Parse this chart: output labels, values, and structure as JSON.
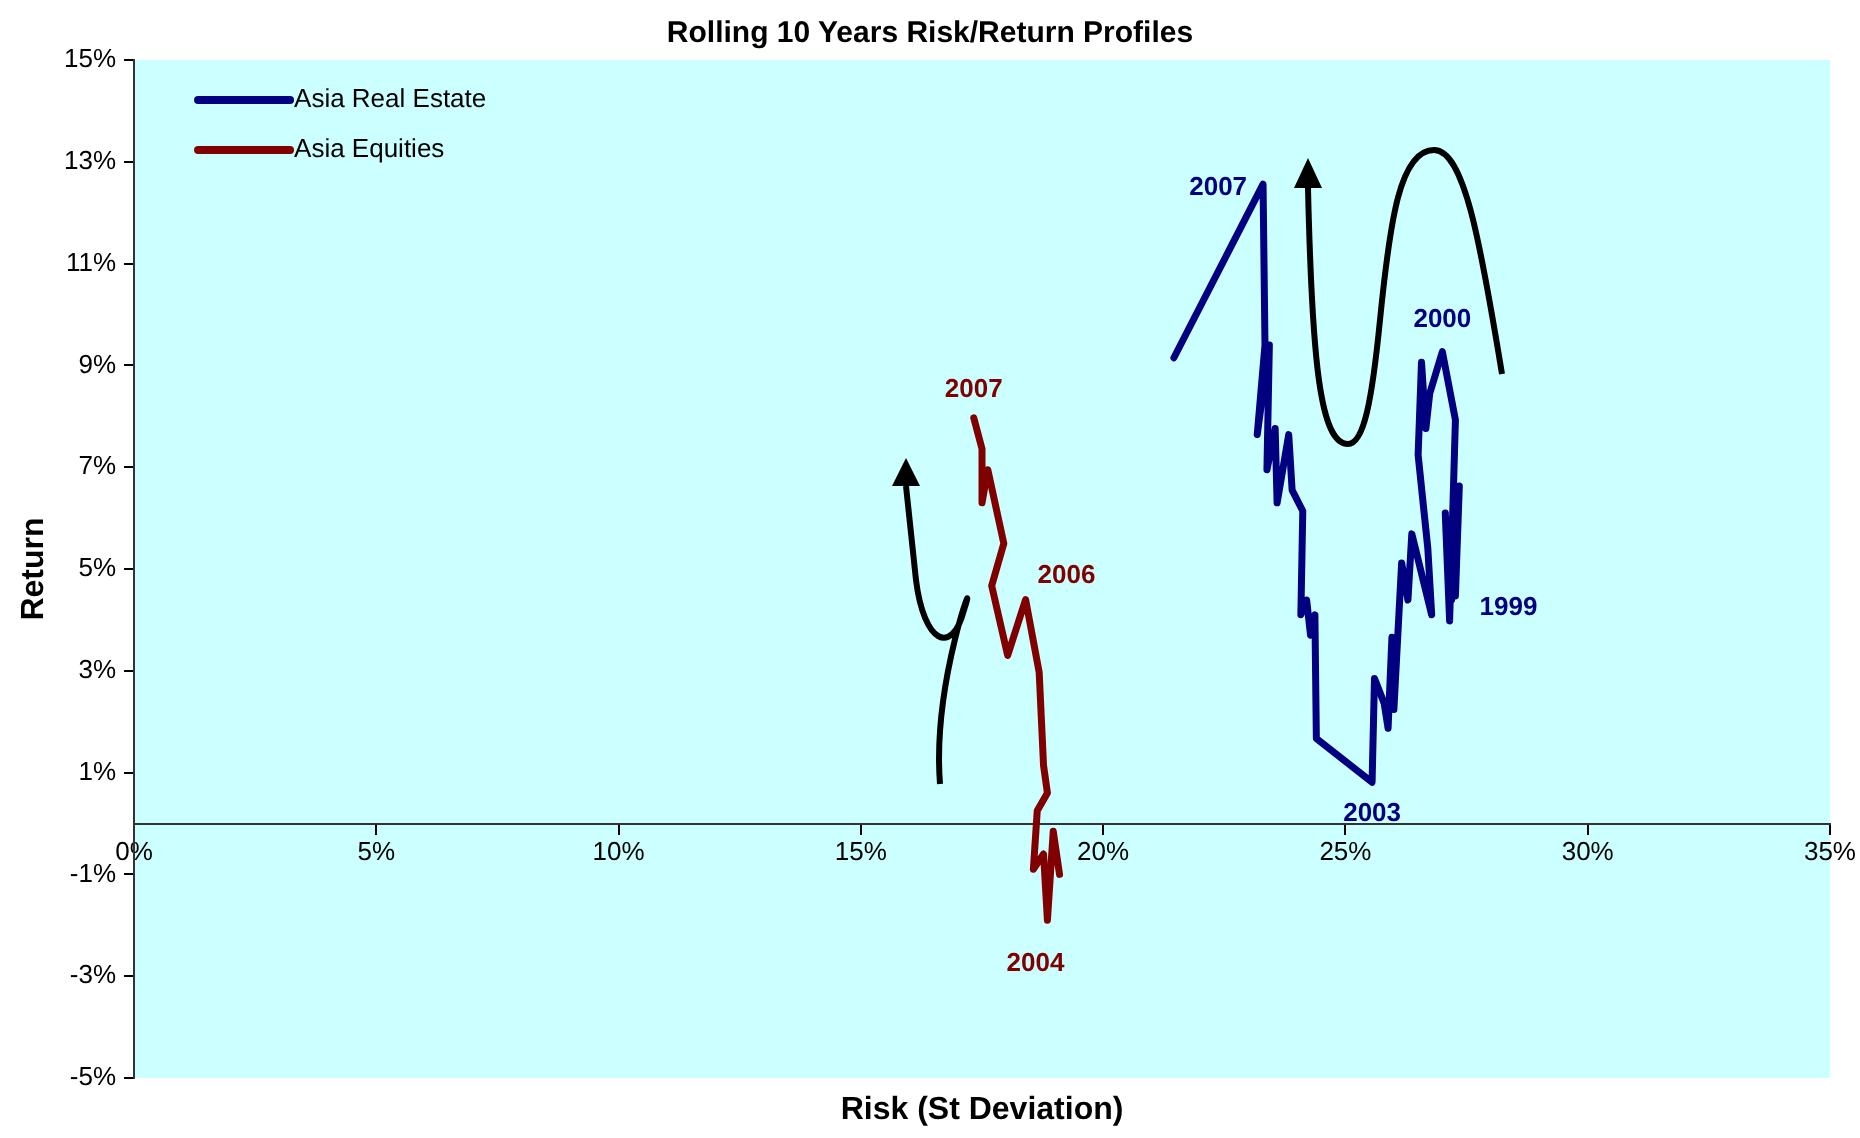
{
  "chart_data": {
    "type": "line",
    "title": "Rolling 10 Years Risk/Return Profiles",
    "xlabel": "Risk (St Deviation)",
    "ylabel": "Return",
    "xlim": [
      0,
      35
    ],
    "xticks": [
      {
        "value": 0,
        "label": "0%"
      },
      {
        "value": 5,
        "label": "5%"
      },
      {
        "value": 10,
        "label": "10%"
      },
      {
        "value": 15,
        "label": "15%"
      },
      {
        "value": 20,
        "label": "20%"
      },
      {
        "value": 25,
        "label": "25%"
      },
      {
        "value": 30,
        "label": "30%"
      },
      {
        "value": 35,
        "label": "35%"
      }
    ],
    "ylim": [
      -5,
      15
    ],
    "yticks": [
      {
        "value": -5,
        "label": "-5%"
      },
      {
        "value": -3,
        "label": "-3%"
      },
      {
        "value": -1,
        "label": "-1%"
      },
      {
        "value": 1,
        "label": "1%"
      },
      {
        "value": 3,
        "label": "3%"
      },
      {
        "value": 5,
        "label": "5%"
      },
      {
        "value": 7,
        "label": "7%"
      },
      {
        "value": 9,
        "label": "9%"
      },
      {
        "value": 11,
        "label": "11%"
      },
      {
        "value": 13,
        "label": "13%"
      },
      {
        "value": 15,
        "label": "15%"
      }
    ],
    "grid": false,
    "legend": "top left",
    "marker": "none",
    "line_style": "solid",
    "series": [
      {
        "name": "Asia Real Estate",
        "color": "#000080",
        "x": [
          21.46,
          23.3,
          23.34,
          23.18,
          23.43,
          23.38,
          23.55,
          23.59,
          23.83,
          23.9,
          24.12,
          24.08,
          24.2,
          24.28,
          24.37,
          24.4,
          25.55,
          25.6,
          25.8,
          25.88,
          25.96,
          26.0,
          26.16,
          26.29,
          26.37,
          26.78,
          26.7,
          26.5,
          26.57,
          26.66,
          26.74,
          27.0,
          27.27,
          27.15,
          27.06,
          27.19,
          27.35,
          27.27
        ],
        "values": [
          9.15,
          12.56,
          9.4,
          7.64,
          9.4,
          6.95,
          7.76,
          6.3,
          7.64,
          6.55,
          6.14,
          4.1,
          4.39,
          3.7,
          4.1,
          1.67,
          0.81,
          2.85,
          2.36,
          1.87,
          3.66,
          2.24,
          5.12,
          4.39,
          5.69,
          4.1,
          5.41,
          7.24,
          9.06,
          7.76,
          8.45,
          9.27,
          7.93,
          3.98,
          6.1,
          4.39,
          6.63,
          4.47
        ]
      },
      {
        "name": "Asia Equities",
        "color": "#800000",
        "x": [
          17.33,
          17.5,
          17.5,
          17.62,
          17.95,
          17.7,
          18.03,
          18.4,
          18.68,
          18.77,
          18.85,
          18.64,
          18.56,
          18.77,
          18.85,
          18.97,
          19.1
        ],
        "values": [
          7.97,
          7.36,
          6.3,
          6.95,
          5.5,
          4.67,
          3.3,
          4.4,
          2.97,
          1.14,
          0.6,
          0.25,
          -0.9,
          -0.6,
          -1.9,
          -0.15,
          -1.0
        ]
      }
    ],
    "annotations": [
      {
        "text": "2007",
        "x": 23.3,
        "y": 12.56
      },
      {
        "text": "2000",
        "x": 27.0,
        "y": 9.27
      },
      {
        "text": "1999",
        "x": 27.19,
        "y": 4.39
      },
      {
        "text": "2003",
        "x": 25.55,
        "y": 0.81
      },
      {
        "text": "2007",
        "x": 17.33,
        "y": 7.97
      },
      {
        "text": "2006",
        "x": 18.4,
        "y": 4.4
      },
      {
        "text": "2004",
        "x": 18.85,
        "y": -1.9
      }
    ]
  }
}
